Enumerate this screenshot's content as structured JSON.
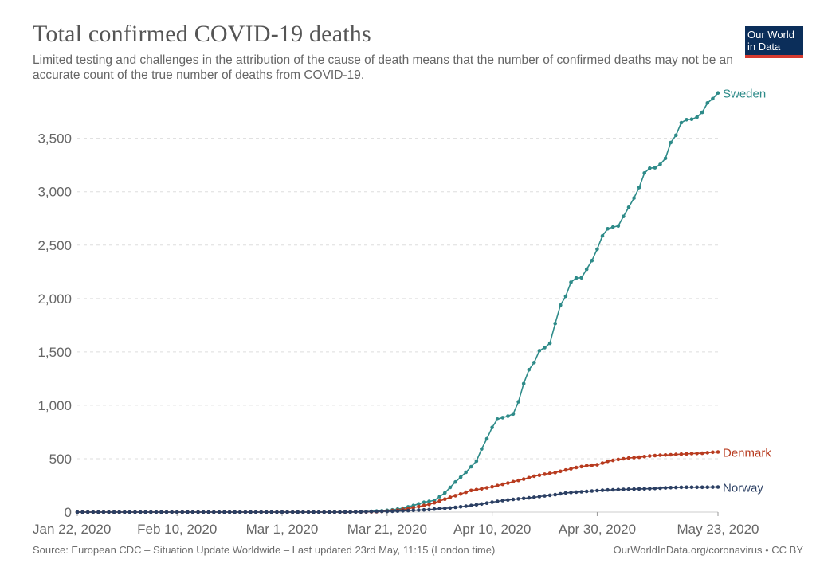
{
  "header": {
    "title": "Total confirmed COVID-19 deaths",
    "subtitle": "Limited testing and challenges in the attribution of the cause of death means that the number of confirmed deaths may not be an accurate count of the true number of deaths from COVID-19."
  },
  "logo": {
    "line1": "Our World",
    "line2": "in Data",
    "bg_color": "#0b2e5a",
    "accent_color": "#d63a2f"
  },
  "footer": {
    "source": "Source: European CDC – Situation Update Worldwide – Last updated 23rd May, 11:15 (London time)",
    "credit": "OurWorldInData.org/coronavirus • CC BY"
  },
  "chart_data": {
    "type": "line",
    "title": "Total confirmed COVID-19 deaths",
    "xlabel": "",
    "ylabel": "",
    "x_start": "2020-01-22",
    "x_end": "2020-05-23",
    "x_ticks": [
      {
        "date": "2020-01-22",
        "label": "Jan 22, 2020"
      },
      {
        "date": "2020-02-10",
        "label": "Feb 10, 2020"
      },
      {
        "date": "2020-03-01",
        "label": "Mar 1, 2020"
      },
      {
        "date": "2020-03-21",
        "label": "Mar 21, 2020"
      },
      {
        "date": "2020-04-10",
        "label": "Apr 10, 2020"
      },
      {
        "date": "2020-04-30",
        "label": "Apr 30, 2020"
      },
      {
        "date": "2020-05-23",
        "label": "May 23, 2020"
      }
    ],
    "y_ticks": [
      {
        "value": 0,
        "label": "0"
      },
      {
        "value": 500,
        "label": "500"
      },
      {
        "value": 1000,
        "label": "1,000"
      },
      {
        "value": 1500,
        "label": "1,500"
      },
      {
        "value": 2000,
        "label": "2,000"
      },
      {
        "value": 2500,
        "label": "2,500"
      },
      {
        "value": 3000,
        "label": "3,000"
      },
      {
        "value": 3500,
        "label": "3,500"
      }
    ],
    "ylim": [
      0,
      3960
    ],
    "grid": "horizontal-dashed",
    "series": [
      {
        "name": "Sweden",
        "color": "#2e8b89",
        "points": [
          [
            "2020-01-22",
            0
          ],
          [
            "2020-03-10",
            0
          ],
          [
            "2020-03-11",
            1
          ],
          [
            "2020-03-14",
            1
          ],
          [
            "2020-03-16",
            2
          ],
          [
            "2020-03-18",
            7
          ],
          [
            "2020-03-20",
            12
          ],
          [
            "2020-03-22",
            21
          ],
          [
            "2020-03-24",
            36
          ],
          [
            "2020-03-26",
            62
          ],
          [
            "2020-03-27",
            77
          ],
          [
            "2020-03-28",
            92
          ],
          [
            "2020-03-30",
            110
          ],
          [
            "2020-04-01",
            180
          ],
          [
            "2020-04-03",
            282
          ],
          [
            "2020-04-05",
            373
          ],
          [
            "2020-04-07",
            477
          ],
          [
            "2020-04-08",
            591
          ],
          [
            "2020-04-09",
            687
          ],
          [
            "2020-04-10",
            793
          ],
          [
            "2020-04-11",
            870
          ],
          [
            "2020-04-13",
            899
          ],
          [
            "2020-04-14",
            919
          ],
          [
            "2020-04-15",
            1033
          ],
          [
            "2020-04-16",
            1203
          ],
          [
            "2020-04-17",
            1333
          ],
          [
            "2020-04-18",
            1400
          ],
          [
            "2020-04-19",
            1511
          ],
          [
            "2020-04-20",
            1540
          ],
          [
            "2020-04-21",
            1580
          ],
          [
            "2020-04-22",
            1765
          ],
          [
            "2020-04-23",
            1937
          ],
          [
            "2020-04-24",
            2021
          ],
          [
            "2020-04-25",
            2152
          ],
          [
            "2020-04-26",
            2192
          ],
          [
            "2020-04-27",
            2194
          ],
          [
            "2020-04-28",
            2274
          ],
          [
            "2020-04-29",
            2355
          ],
          [
            "2020-04-30",
            2462
          ],
          [
            "2020-05-01",
            2586
          ],
          [
            "2020-05-02",
            2653
          ],
          [
            "2020-05-03",
            2669
          ],
          [
            "2020-05-04",
            2679
          ],
          [
            "2020-05-05",
            2769
          ],
          [
            "2020-05-06",
            2854
          ],
          [
            "2020-05-07",
            2941
          ],
          [
            "2020-05-08",
            3040
          ],
          [
            "2020-05-09",
            3175
          ],
          [
            "2020-05-10",
            3220
          ],
          [
            "2020-05-11",
            3225
          ],
          [
            "2020-05-12",
            3256
          ],
          [
            "2020-05-13",
            3313
          ],
          [
            "2020-05-14",
            3460
          ],
          [
            "2020-05-15",
            3529
          ],
          [
            "2020-05-16",
            3646
          ],
          [
            "2020-05-17",
            3674
          ],
          [
            "2020-05-18",
            3679
          ],
          [
            "2020-05-19",
            3698
          ],
          [
            "2020-05-20",
            3743
          ],
          [
            "2020-05-21",
            3831
          ],
          [
            "2020-05-22",
            3871
          ],
          [
            "2020-05-23",
            3925
          ]
        ]
      },
      {
        "name": "Denmark",
        "color": "#b83b1f",
        "points": [
          [
            "2020-01-22",
            0
          ],
          [
            "2020-03-13",
            0
          ],
          [
            "2020-03-14",
            1
          ],
          [
            "2020-03-17",
            2
          ],
          [
            "2020-03-19",
            4
          ],
          [
            "2020-03-21",
            9
          ],
          [
            "2020-03-23",
            19
          ],
          [
            "2020-03-25",
            32
          ],
          [
            "2020-03-27",
            52
          ],
          [
            "2020-03-29",
            72
          ],
          [
            "2020-03-31",
            104
          ],
          [
            "2020-04-02",
            139
          ],
          [
            "2020-04-04",
            169
          ],
          [
            "2020-04-06",
            203
          ],
          [
            "2020-04-08",
            218
          ],
          [
            "2020-04-10",
            237
          ],
          [
            "2020-04-12",
            260
          ],
          [
            "2020-04-14",
            285
          ],
          [
            "2020-04-16",
            309
          ],
          [
            "2020-04-18",
            336
          ],
          [
            "2020-04-20",
            355
          ],
          [
            "2020-04-22",
            370
          ],
          [
            "2020-04-24",
            394
          ],
          [
            "2020-04-26",
            418
          ],
          [
            "2020-04-28",
            434
          ],
          [
            "2020-04-30",
            443
          ],
          [
            "2020-05-02",
            475
          ],
          [
            "2020-05-04",
            493
          ],
          [
            "2020-05-06",
            506
          ],
          [
            "2020-05-08",
            514
          ],
          [
            "2020-05-10",
            526
          ],
          [
            "2020-05-12",
            533
          ],
          [
            "2020-05-14",
            537
          ],
          [
            "2020-05-16",
            543
          ],
          [
            "2020-05-18",
            548
          ],
          [
            "2020-05-20",
            551
          ],
          [
            "2020-05-22",
            561
          ],
          [
            "2020-05-23",
            563
          ]
        ]
      },
      {
        "name": "Norway",
        "color": "#2b3f63",
        "points": [
          [
            "2020-01-22",
            0
          ],
          [
            "2020-03-12",
            0
          ],
          [
            "2020-03-14",
            1
          ],
          [
            "2020-03-17",
            3
          ],
          [
            "2020-03-19",
            6
          ],
          [
            "2020-03-21",
            7
          ],
          [
            "2020-03-23",
            10
          ],
          [
            "2020-03-25",
            14
          ],
          [
            "2020-03-27",
            19
          ],
          [
            "2020-03-29",
            23
          ],
          [
            "2020-03-31",
            33
          ],
          [
            "2020-04-02",
            39
          ],
          [
            "2020-04-04",
            50
          ],
          [
            "2020-04-06",
            62
          ],
          [
            "2020-04-08",
            76
          ],
          [
            "2020-04-10",
            93
          ],
          [
            "2020-04-12",
            108
          ],
          [
            "2020-04-14",
            119
          ],
          [
            "2020-04-16",
            128
          ],
          [
            "2020-04-18",
            139
          ],
          [
            "2020-04-20",
            152
          ],
          [
            "2020-04-22",
            163
          ],
          [
            "2020-04-24",
            180
          ],
          [
            "2020-04-26",
            187
          ],
          [
            "2020-04-28",
            194
          ],
          [
            "2020-04-30",
            201
          ],
          [
            "2020-05-02",
            207
          ],
          [
            "2020-05-04",
            211
          ],
          [
            "2020-05-06",
            214
          ],
          [
            "2020-05-08",
            217
          ],
          [
            "2020-05-10",
            219
          ],
          [
            "2020-05-12",
            224
          ],
          [
            "2020-05-14",
            229
          ],
          [
            "2020-05-16",
            232
          ],
          [
            "2020-05-18",
            233
          ],
          [
            "2020-05-20",
            233
          ],
          [
            "2020-05-22",
            234
          ],
          [
            "2020-05-23",
            235
          ]
        ]
      }
    ]
  }
}
